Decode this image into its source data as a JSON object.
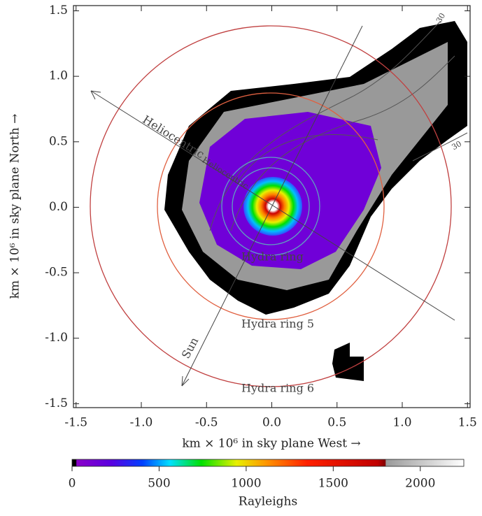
{
  "chart_data": {
    "type": "image",
    "xlabel": "km × 10⁶ in sky plane  West →",
    "ylabel": "km × 10⁶ in sky plane  North →",
    "xlim": [
      -1.52,
      1.52
    ],
    "ylim": [
      -1.53,
      1.54
    ],
    "xticks": [
      -1.5,
      {
        "value": -1,
        "label": "-1.0"
      },
      -0.5,
      {
        "value": 0,
        "label": "0.0"
      },
      0.5,
      {
        "value": 1,
        "label": "1.0"
      },
      1.5
    ],
    "yticks": [
      -1.5,
      {
        "value": -1,
        "label": "-1.0"
      },
      -0.5,
      {
        "value": 0,
        "label": "0.0"
      },
      0.5,
      {
        "value": 1,
        "label": "1.0"
      },
      1.5
    ],
    "annotations": [
      "Heliocentric",
      "Heliocentric",
      "Hydra ring",
      "Hydra ring  5",
      "Hydra ring  6",
      "Sun",
      "30",
      "30"
    ],
    "colorbar": {
      "label": "Rayleighs",
      "lim": [
        0,
        2250
      ],
      "ticks": [
        0,
        500,
        1000,
        1500,
        2000
      ]
    }
  }
}
